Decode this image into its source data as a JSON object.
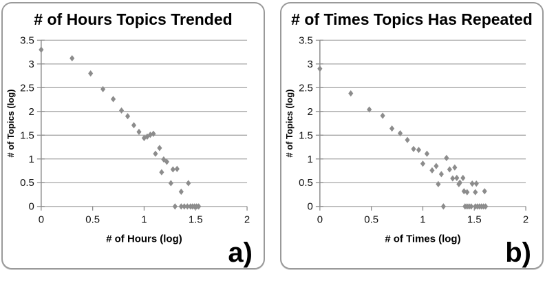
{
  "colors": {
    "marker": "#8c8c8c",
    "gridline": "#a6a6a6",
    "axis": "#8c8c8c",
    "tick_text": "#111111",
    "panel_border": "#9a9a9a"
  },
  "panels": [
    {
      "corner_label": "a)"
    },
    {
      "corner_label": "b)"
    }
  ],
  "chart_data": [
    {
      "type": "scatter",
      "title": "# of Hours Topics Trended",
      "xlabel": "# of Hours (log)",
      "ylabel": "# of Topics (log)",
      "xlim": [
        0,
        2
      ],
      "ylim": [
        0,
        3.5
      ],
      "xticks": [
        0,
        0.5,
        1,
        1.5,
        2
      ],
      "yticks": [
        0,
        0.5,
        1,
        1.5,
        2,
        2.5,
        3,
        3.5
      ],
      "grid": "horizontal",
      "legend": "none",
      "marker": "diamond",
      "points": [
        [
          0.0,
          3.3
        ],
        [
          0.3,
          3.12
        ],
        [
          0.48,
          2.8
        ],
        [
          0.6,
          2.47
        ],
        [
          0.7,
          2.26
        ],
        [
          0.78,
          2.02
        ],
        [
          0.84,
          1.9
        ],
        [
          0.9,
          1.71
        ],
        [
          0.95,
          1.57
        ],
        [
          1.0,
          1.44
        ],
        [
          1.03,
          1.47
        ],
        [
          1.06,
          1.51
        ],
        [
          1.09,
          1.53
        ],
        [
          1.11,
          1.11
        ],
        [
          1.15,
          1.23
        ],
        [
          1.17,
          0.72
        ],
        [
          1.19,
          0.99
        ],
        [
          1.22,
          0.94
        ],
        [
          1.26,
          0.49
        ],
        [
          1.28,
          0.78
        ],
        [
          1.32,
          0.79
        ],
        [
          1.36,
          0.31
        ],
        [
          1.43,
          0.49
        ],
        [
          1.3,
          0
        ],
        [
          1.36,
          0
        ],
        [
          1.39,
          0
        ],
        [
          1.42,
          0
        ],
        [
          1.45,
          0
        ],
        [
          1.47,
          0
        ],
        [
          1.49,
          0
        ],
        [
          1.51,
          0
        ],
        [
          1.53,
          0
        ]
      ]
    },
    {
      "type": "scatter",
      "title": "# of Times Topics Has Repeated",
      "xlabel": "# of Times (log)",
      "ylabel": "# of Topics (log)",
      "xlim": [
        0,
        2
      ],
      "ylim": [
        0,
        3.5
      ],
      "xticks": [
        0,
        0.5,
        1,
        1.5,
        2
      ],
      "yticks": [
        0,
        0.5,
        1,
        1.5,
        2,
        2.5,
        3,
        3.5
      ],
      "grid": "horizontal",
      "legend": "none",
      "marker": "diamond",
      "points": [
        [
          0.0,
          2.9
        ],
        [
          0.3,
          2.38
        ],
        [
          0.48,
          2.04
        ],
        [
          0.61,
          1.91
        ],
        [
          0.7,
          1.64
        ],
        [
          0.78,
          1.54
        ],
        [
          0.85,
          1.4
        ],
        [
          0.91,
          1.21
        ],
        [
          0.96,
          1.19
        ],
        [
          1.0,
          0.9
        ],
        [
          1.04,
          1.11
        ],
        [
          1.09,
          0.76
        ],
        [
          1.13,
          0.85
        ],
        [
          1.15,
          0.47
        ],
        [
          1.18,
          0.68
        ],
        [
          1.23,
          1.02
        ],
        [
          1.26,
          0.78
        ],
        [
          1.29,
          0.59
        ],
        [
          1.31,
          0.82
        ],
        [
          1.33,
          0.6
        ],
        [
          1.35,
          0.47
        ],
        [
          1.36,
          0.5
        ],
        [
          1.39,
          0.6
        ],
        [
          1.4,
          0.32
        ],
        [
          1.43,
          0.3
        ],
        [
          1.48,
          0.48
        ],
        [
          1.51,
          0.3
        ],
        [
          1.52,
          0.48
        ],
        [
          1.6,
          0.32
        ],
        [
          1.2,
          0
        ],
        [
          1.41,
          0
        ],
        [
          1.43,
          0
        ],
        [
          1.45,
          0
        ],
        [
          1.47,
          0
        ],
        [
          1.51,
          0
        ],
        [
          1.53,
          0
        ],
        [
          1.55,
          0
        ],
        [
          1.57,
          0
        ],
        [
          1.59,
          0
        ],
        [
          1.61,
          0
        ]
      ]
    }
  ]
}
